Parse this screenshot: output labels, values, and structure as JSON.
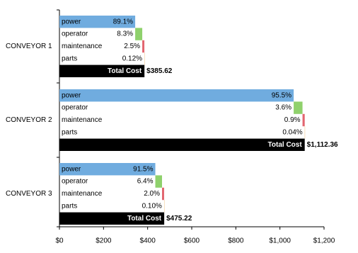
{
  "chart_data": {
    "type": "cost-breakdown",
    "xlim": [
      0,
      1200
    ],
    "xticks": [
      {
        "value": 0,
        "label": "$0"
      },
      {
        "value": 200,
        "label": "$200"
      },
      {
        "value": 400,
        "label": "$400"
      },
      {
        "value": 600,
        "label": "$600"
      },
      {
        "value": 800,
        "label": "$800"
      },
      {
        "value": 1000,
        "label": "$1,000"
      },
      {
        "value": 1200,
        "label": "$1,200"
      }
    ],
    "total_name": "Total Cost",
    "total_color": "#000000",
    "components": [
      {
        "name": "power",
        "color": "#70acdf"
      },
      {
        "name": "operator",
        "color": "#8fd16c"
      },
      {
        "name": "maintenance",
        "color": "#e2656f"
      },
      {
        "name": "parts",
        "color": "#f2c27e"
      }
    ],
    "groups": [
      {
        "name": "CONVEYOR 1",
        "total": 385.62,
        "total_label": "$385.62",
        "shares": [
          89.1,
          8.3,
          2.5,
          0.12
        ],
        "share_labels": [
          "89.1%",
          "8.3%",
          "2.5%",
          "0.12%"
        ]
      },
      {
        "name": "CONVEYOR 2",
        "total": 1112.36,
        "total_label": "$1,112.36",
        "shares": [
          95.5,
          3.6,
          0.9,
          0.04
        ],
        "share_labels": [
          "95.5%",
          "3.6%",
          "0.9%",
          "0.04%"
        ]
      },
      {
        "name": "CONVEYOR 3",
        "total": 475.22,
        "total_label": "$475.22",
        "shares": [
          91.5,
          6.4,
          2.0,
          0.1
        ],
        "share_labels": [
          "91.5%",
          "6.4%",
          "2.0%",
          "0.10%"
        ]
      }
    ]
  }
}
